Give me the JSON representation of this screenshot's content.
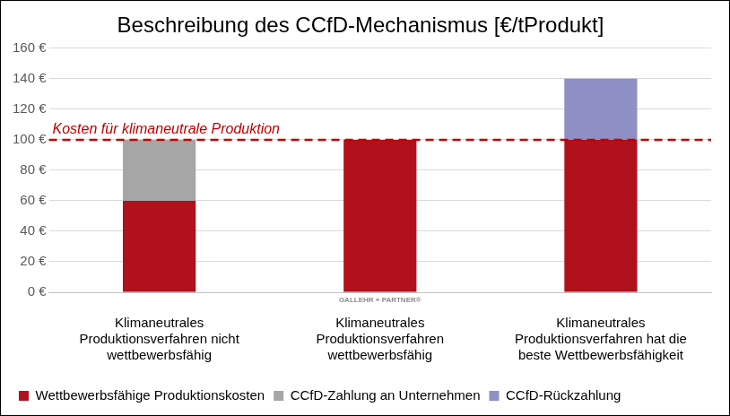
{
  "chart_data": {
    "type": "bar",
    "title": "Beschreibung des CCfD-Mechanismus [€/tProdukt]",
    "categories": [
      [
        "Klimaneutrales",
        "Produktionsverfahren nicht",
        "wettbewerbsfähig"
      ],
      [
        "Klimaneutrales",
        "Produktionsverfahren",
        "wettbewerbsfähig"
      ],
      [
        "Klimaneutrales",
        "Produktionsverfahren hat die",
        "beste Wettbewerbsfähigkeit"
      ]
    ],
    "series": [
      {
        "name": "Wettbewerbsfähige Produktionskosten",
        "color": "#b0111c",
        "values": [
          60,
          100,
          100
        ]
      },
      {
        "name": "CCfD-Zahlung an Unternehmen",
        "color": "#a6a6a6",
        "values": [
          40,
          null,
          null
        ]
      },
      {
        "name": "CCfD-Rückzahlung",
        "color": "#8e8fc4",
        "values": [
          null,
          null,
          40
        ]
      }
    ],
    "stacked": true,
    "ylim": [
      0,
      160
    ],
    "yticks": [
      {
        "value": 0,
        "label": "0 €"
      },
      {
        "value": 20,
        "label": "20 €"
      },
      {
        "value": 40,
        "label": "40 €"
      },
      {
        "value": 60,
        "label": "60 €"
      },
      {
        "value": 80,
        "label": "80 €"
      },
      {
        "value": 100,
        "label": "100 €"
      },
      {
        "value": 120,
        "label": "120 €"
      },
      {
        "value": 140,
        "label": "140 €"
      },
      {
        "value": 160,
        "label": "160 €"
      }
    ],
    "grid": true,
    "legend": "bottom",
    "reference_line": {
      "value": 100,
      "label": "Kosten für klimaneutrale Produktion",
      "color": "#c00000"
    },
    "watermark": "GALLEHR + PARTNER®"
  }
}
